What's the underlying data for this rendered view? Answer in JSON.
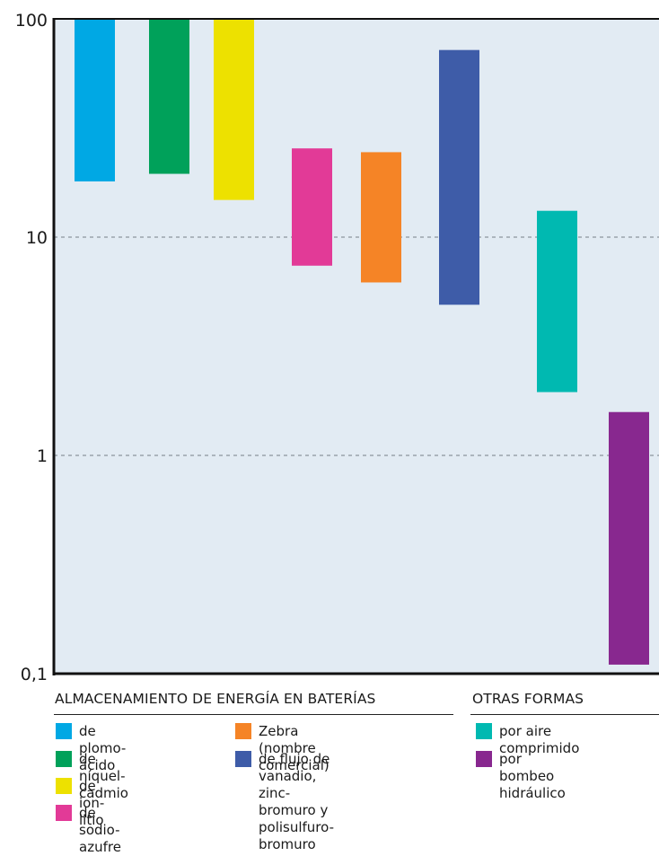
{
  "chart_data": {
    "type": "floating-bar",
    "y_scale": "log",
    "ylim": [
      0.1,
      100
    ],
    "y_ticks": [
      {
        "value": 0.1,
        "label": "0,1"
      },
      {
        "value": 1,
        "label": "1"
      },
      {
        "value": 10,
        "label": "10"
      },
      {
        "value": 100,
        "label": "100"
      }
    ],
    "grid": "dashed horizontal lines at 1 and 10",
    "background_color": "#e2ebf3",
    "bars": [
      {
        "series": "de plomo-ácido",
        "low": 18,
        "high": 100,
        "color": "#00a8e4"
      },
      {
        "series": "de níquel-cadmio",
        "low": 19.5,
        "high": 100,
        "color": "#00a15a"
      },
      {
        "series": "de ion-litio",
        "low": 14.8,
        "high": 100,
        "color": "#ede100"
      },
      {
        "series": "de sodio-azufre",
        "low": 7.4,
        "high": 25.5,
        "color": "#e23a97"
      },
      {
        "series": "Zebra (nombre comercial)",
        "low": 6.2,
        "high": 24.5,
        "color": "#f58426"
      },
      {
        "series": "de flujo de vanadio, zinc-bromuro y polisulfuro-bromuro",
        "low": 4.9,
        "high": 72,
        "color": "#3e5ca8"
      },
      {
        "series": "por aire comprimido",
        "low": 1.95,
        "high": 13.2,
        "color": "#00b9b1"
      },
      {
        "series": "por bombeo hidráulico",
        "low": 0.11,
        "high": 1.58,
        "color": "#88288f"
      }
    ]
  },
  "legend": {
    "batteries": {
      "heading": "ALMACENAMIENTO DE ENERGÍA EN BATERÍAS",
      "items": [
        {
          "label": "de plomo-ácido",
          "color": "#00a8e4"
        },
        {
          "label": "de níquel-cadmio",
          "color": "#00a15a"
        },
        {
          "label": "de ion-litio",
          "color": "#ede100"
        },
        {
          "label": "de sodio-azufre",
          "color": "#e23a97"
        },
        {
          "label": "Zebra (nombre comercial)",
          "color": "#f58426"
        },
        {
          "label": "de flujo de vanadio,\nzinc-bromuro y\npolisulfuro-bromuro",
          "color": "#3e5ca8"
        }
      ]
    },
    "other": {
      "heading": "OTRAS FORMAS",
      "items": [
        {
          "label": "por aire comprimido",
          "color": "#00b9b1"
        },
        {
          "label": "por bombeo hidráulico",
          "color": "#88288f"
        }
      ]
    }
  }
}
